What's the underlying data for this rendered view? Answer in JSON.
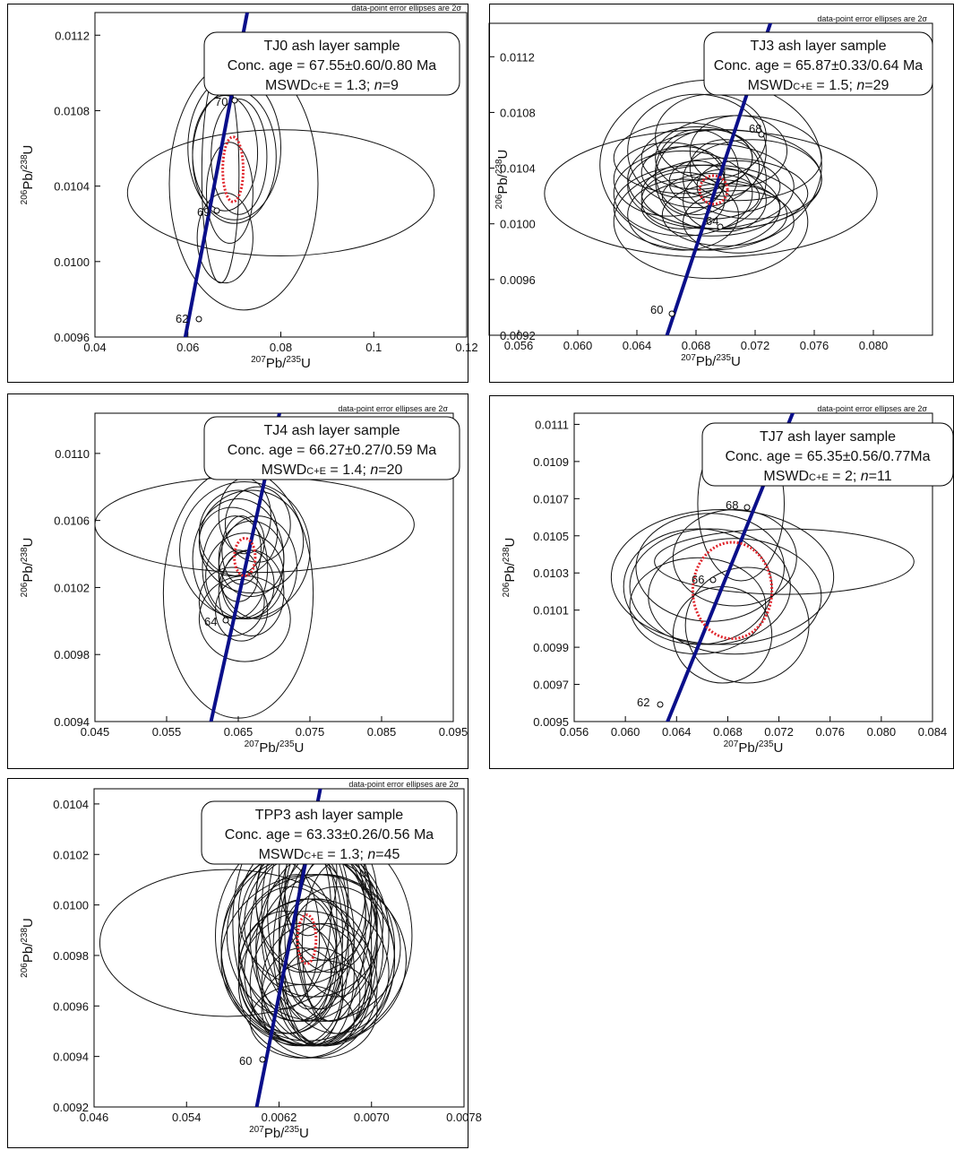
{
  "footnote": "data-point error ellipses are 2σ",
  "axes": {
    "x_label_pre": "207",
    "x_label_mid": "Pb/",
    "x_label_sup2": "235",
    "x_label_end": "U",
    "y_label_pre": "206",
    "y_label_mid": "Pb/",
    "y_label_sup2": "238",
    "y_label_end": "U"
  },
  "chart_data": [
    {
      "type": "scatter",
      "sample": "TJ0 ash layer sample",
      "conc_age": "Conc. age = 67.55±0.60/0.80 Ma",
      "mswd_label": "MSWD",
      "mswd_sub": "C+E",
      "mswd_value": "= 1.3;",
      "n_label": "n",
      "n_value": "=9",
      "xlim": [
        0.04,
        0.12
      ],
      "ylim": [
        0.0096,
        0.0114
      ],
      "x_ticks": [
        "0.04",
        "0.06",
        "0.08",
        "0.1",
        "0.12"
      ],
      "y_ticks": [
        "0.0096",
        "0.0100",
        "0.0104",
        "0.0108",
        "0.0112"
      ],
      "concordia_ages_labeled": [
        "62",
        "69",
        "70"
      ],
      "ellipses": [
        {
          "x": 0.072,
          "y": 0.01045,
          "rx": 0.016,
          "ry": 0.0007
        },
        {
          "x": 0.07,
          "y": 0.01065,
          "rx": 0.01,
          "ry": 0.0004
        },
        {
          "x": 0.068,
          "y": 0.01062,
          "rx": 0.007,
          "ry": 0.00032
        },
        {
          "x": 0.07,
          "y": 0.0106,
          "rx": 0.009,
          "ry": 0.00037
        },
        {
          "x": 0.08,
          "y": 0.0104,
          "rx": 0.033,
          "ry": 0.00035
        },
        {
          "x": 0.067,
          "y": 0.0105,
          "rx": 0.004,
          "ry": 0.0006
        },
        {
          "x": 0.069,
          "y": 0.0104,
          "rx": 0.005,
          "ry": 0.00028
        },
        {
          "x": 0.071,
          "y": 0.0106,
          "rx": 0.006,
          "ry": 0.00032
        },
        {
          "x": 0.068,
          "y": 0.01015,
          "rx": 0.006,
          "ry": 0.00025
        }
      ],
      "mean": {
        "x": 0.0697,
        "y": 0.01053,
        "rx": 0.0022,
        "ry": 0.00018
      }
    },
    {
      "type": "scatter",
      "sample": "TJ3 ash layer sample",
      "conc_age": "Conc. age = 65.87±0.33/0.64 Ma",
      "mswd_label": "MSWD",
      "mswd_sub": "C+E",
      "mswd_value": "= 1.5;",
      "n_label": "n",
      "n_value": "=29",
      "xlim": [
        0.052,
        0.084
      ],
      "ylim": [
        0.0092,
        0.0114
      ],
      "x_ticks": [
        "0.056",
        "0.060",
        "0.064",
        "0.068",
        "0.072",
        "0.076",
        "0.080"
      ],
      "y_ticks": [
        "0.0092",
        "0.0096",
        "0.0100",
        "0.0104",
        "0.0108",
        "0.0112"
      ],
      "concordia_ages_labeled": [
        "60",
        "64",
        "68"
      ],
      "ellipses": [
        {
          "x": 0.068,
          "y": 0.0102,
          "rx": 0.012,
          "ry": 0.00045
        },
        {
          "x": 0.068,
          "y": 0.0104,
          "rx": 0.008,
          "ry": 0.0006
        },
        {
          "x": 0.066,
          "y": 0.0102,
          "rx": 0.005,
          "ry": 0.0003
        },
        {
          "x": 0.068,
          "y": 0.0103,
          "rx": 0.004,
          "ry": 0.00035
        },
        {
          "x": 0.069,
          "y": 0.0102,
          "rx": 0.006,
          "ry": 0.00025
        },
        {
          "x": 0.067,
          "y": 0.0105,
          "rx": 0.005,
          "ry": 0.0004
        },
        {
          "x": 0.07,
          "y": 0.01045,
          "rx": 0.006,
          "ry": 0.0003
        },
        {
          "x": 0.066,
          "y": 0.01005,
          "rx": 0.004,
          "ry": 0.00025
        },
        {
          "x": 0.068,
          "y": 0.0101,
          "rx": 0.005,
          "ry": 0.0002
        },
        {
          "x": 0.067,
          "y": 0.01035,
          "rx": 0.003,
          "ry": 0.0003
        },
        {
          "x": 0.069,
          "y": 0.01015,
          "rx": 0.003,
          "ry": 0.00022
        },
        {
          "x": 0.071,
          "y": 0.0103,
          "rx": 0.005,
          "ry": 0.00028
        },
        {
          "x": 0.065,
          "y": 0.0103,
          "rx": 0.004,
          "ry": 0.00026
        },
        {
          "x": 0.07,
          "y": 0.01,
          "rx": 0.004,
          "ry": 0.00022
        },
        {
          "x": 0.068,
          "y": 0.0106,
          "rx": 0.004,
          "ry": 0.0003
        },
        {
          "x": 0.066,
          "y": 0.01045,
          "rx": 0.005,
          "ry": 0.00025
        },
        {
          "x": 0.069,
          "y": 0.0103,
          "rx": 0.007,
          "ry": 0.00035
        },
        {
          "x": 0.067,
          "y": 0.0101,
          "rx": 0.006,
          "ry": 0.0003
        },
        {
          "x": 0.068,
          "y": 0.01,
          "rx": 0.007,
          "ry": 0.0004
        },
        {
          "x": 0.07,
          "y": 0.01025,
          "rx": 0.003,
          "ry": 0.00018
        },
        {
          "x": 0.066,
          "y": 0.01015,
          "rx": 0.003,
          "ry": 0.0002
        },
        {
          "x": 0.067,
          "y": 0.01028,
          "rx": 0.002,
          "ry": 0.00015
        },
        {
          "x": 0.069,
          "y": 0.01038,
          "rx": 0.0025,
          "ry": 0.0002
        },
        {
          "x": 0.068,
          "y": 0.01018,
          "rx": 0.0035,
          "ry": 0.00016
        },
        {
          "x": 0.066,
          "y": 0.01035,
          "rx": 0.003,
          "ry": 0.00018
        },
        {
          "x": 0.069,
          "y": 0.01005,
          "rx": 0.0045,
          "ry": 0.00022
        },
        {
          "x": 0.07,
          "y": 0.0105,
          "rx": 0.0035,
          "ry": 0.00025
        },
        {
          "x": 0.067,
          "y": 0.01045,
          "rx": 0.004,
          "ry": 0.00022
        },
        {
          "x": 0.068,
          "y": 0.01025,
          "rx": 0.006,
          "ry": 0.0003
        }
      ],
      "mean": {
        "x": 0.0682,
        "y": 0.010225,
        "rx": 0.001,
        "ry": 0.0001
      }
    },
    {
      "type": "scatter",
      "sample": "TJ4 ash layer sample",
      "conc_age": "Conc. age = 66.27±0.27/0.59 Ma",
      "mswd_label": "MSWD",
      "mswd_sub": "C+E",
      "mswd_value": "= 1.4;",
      "n_label": "n",
      "n_value": "=20",
      "xlim": [
        0.045,
        0.1
      ],
      "ylim": [
        0.0094,
        0.0112
      ],
      "x_ticks": [
        "0.045",
        "0.055",
        "0.065",
        "0.075",
        "0.085",
        "0.095"
      ],
      "y_ticks": [
        "0.0094",
        "0.0098",
        "0.0102",
        "0.0106",
        "0.0110"
      ],
      "concordia_ages_labeled": [
        "64"
      ],
      "ellipses": [
        {
          "x": 0.0695,
          "y": 0.01055,
          "rx": 0.0245,
          "ry": 0.00028
        },
        {
          "x": 0.067,
          "y": 0.01015,
          "rx": 0.0115,
          "ry": 0.00073
        },
        {
          "x": 0.068,
          "y": 0.0104,
          "rx": 0.01,
          "ry": 0.0004
        },
        {
          "x": 0.067,
          "y": 0.01035,
          "rx": 0.007,
          "ry": 0.00035
        },
        {
          "x": 0.069,
          "y": 0.01045,
          "rx": 0.008,
          "ry": 0.0003
        },
        {
          "x": 0.0665,
          "y": 0.0103,
          "rx": 0.005,
          "ry": 0.0003
        },
        {
          "x": 0.068,
          "y": 0.01025,
          "rx": 0.006,
          "ry": 0.00025
        },
        {
          "x": 0.069,
          "y": 0.01035,
          "rx": 0.005,
          "ry": 0.00022
        },
        {
          "x": 0.067,
          "y": 0.0105,
          "rx": 0.006,
          "ry": 0.00025
        },
        {
          "x": 0.07,
          "y": 0.0103,
          "rx": 0.006,
          "ry": 0.0003
        },
        {
          "x": 0.066,
          "y": 0.0101,
          "rx": 0.005,
          "ry": 0.0002
        },
        {
          "x": 0.0685,
          "y": 0.0102,
          "rx": 0.004,
          "ry": 0.0002
        },
        {
          "x": 0.0675,
          "y": 0.0104,
          "rx": 0.003,
          "ry": 0.0002
        },
        {
          "x": 0.068,
          "y": 0.01,
          "rx": 0.007,
          "ry": 0.00025
        },
        {
          "x": 0.07,
          "y": 0.01055,
          "rx": 0.005,
          "ry": 0.00022
        },
        {
          "x": 0.066,
          "y": 0.01045,
          "rx": 0.005,
          "ry": 0.0002
        },
        {
          "x": 0.069,
          "y": 0.01015,
          "rx": 0.005,
          "ry": 0.00025
        },
        {
          "x": 0.067,
          "y": 0.01025,
          "rx": 0.003,
          "ry": 0.00015
        },
        {
          "x": 0.068,
          "y": 0.0106,
          "rx": 0.004,
          "ry": 0.00022
        },
        {
          "x": 0.0675,
          "y": 0.01005,
          "rx": 0.004,
          "ry": 0.00018
        }
      ],
      "mean": {
        "x": 0.068,
        "y": 0.01036,
        "rx": 0.0016,
        "ry": 0.00011
      }
    },
    {
      "type": "scatter",
      "sample": "TJ7 ash layer sample",
      "conc_age": "Conc. age = 65.35±0.56/0.77Ma",
      "mswd_label": "MSWD",
      "mswd_sub": "C+E",
      "mswd_value": "= 2;",
      "n_label": "n",
      "n_value": "=11",
      "xlim": [
        0.056,
        0.085
      ],
      "ylim": [
        0.0095,
        0.0111
      ],
      "x_ticks": [
        "0.056",
        "0.060",
        "0.064",
        "0.068",
        "0.072",
        "0.076",
        "0.080",
        "0.084"
      ],
      "y_ticks": [
        "0.0095",
        "0.0097",
        "0.0099",
        "0.0101",
        "0.0103",
        "0.0105",
        "0.0107",
        "0.0109",
        "0.0111"
      ],
      "concordia_ages_labeled": [
        "62",
        "66",
        "68"
      ],
      "ellipses": [
        {
          "x": 0.0695,
          "y": 0.01063,
          "rx": 0.0035,
          "ry": 0.0004
        },
        {
          "x": 0.073,
          "y": 0.01033,
          "rx": 0.0105,
          "ry": 0.00017
        },
        {
          "x": 0.068,
          "y": 0.01025,
          "rx": 0.009,
          "ry": 0.00035
        },
        {
          "x": 0.067,
          "y": 0.0102,
          "rx": 0.0065,
          "ry": 0.0003
        },
        {
          "x": 0.069,
          "y": 0.01015,
          "rx": 0.007,
          "ry": 0.0003
        },
        {
          "x": 0.066,
          "y": 0.0101,
          "rx": 0.0055,
          "ry": 0.00025
        },
        {
          "x": 0.07,
          "y": 0.01,
          "rx": 0.005,
          "ry": 0.0003
        },
        {
          "x": 0.068,
          "y": 0.00995,
          "rx": 0.004,
          "ry": 0.00025
        },
        {
          "x": 0.067,
          "y": 0.0103,
          "rx": 0.006,
          "ry": 0.00028
        },
        {
          "x": 0.069,
          "y": 0.01035,
          "rx": 0.005,
          "ry": 0.00025
        },
        {
          "x": 0.066,
          "y": 0.0102,
          "rx": 0.006,
          "ry": 0.0003
        }
      ],
      "mean": {
        "x": 0.0688,
        "y": 0.01018,
        "rx": 0.0032,
        "ry": 0.00025
      }
    },
    {
      "type": "scatter",
      "sample": "TPP3 ash layer sample",
      "conc_age": "Conc. age = 63.33±0.26/0.56 Ma",
      "mswd_label": "MSWD",
      "mswd_sub": "C+E",
      "mswd_value": "= 1.3;",
      "n_label": "n",
      "n_value": "=45",
      "xlim": [
        0.0046,
        0.0078
      ],
      "ylim": [
        0.0092,
        0.0105
      ],
      "x_ticks": [
        "0.046",
        "0.054",
        "0.0062",
        "0.0070",
        "0.0078"
      ],
      "y_ticks": [
        "0.0092",
        "0.0094",
        "0.0096",
        "0.0098",
        "0.0100",
        "0.0102",
        "0.0104"
      ],
      "concordia_ages_labeled": [
        "60"
      ],
      "ellipses": [
        {
          "x": 0.00575,
          "y": 0.00987,
          "rx": 0.0011,
          "ry": 0.0003
        },
        {
          "x": 0.0065,
          "y": 0.0099,
          "rx": 0.00085,
          "ry": 0.00045
        },
        {
          "x": 0.0064,
          "y": 0.00985,
          "rx": 0.0007,
          "ry": 0.0004
        },
        {
          "x": 0.0066,
          "y": 0.0098,
          "rx": 0.0006,
          "ry": 0.00035
        },
        {
          "x": 0.0063,
          "y": 0.00995,
          "rx": 0.0005,
          "ry": 0.00045
        },
        {
          "x": 0.00655,
          "y": 0.01,
          "rx": 0.00045,
          "ry": 0.0004
        },
        {
          "x": 0.00645,
          "y": 0.00975,
          "rx": 0.00055,
          "ry": 0.0003
        },
        {
          "x": 0.00665,
          "y": 0.0099,
          "rx": 0.0004,
          "ry": 0.00035
        },
        {
          "x": 0.00635,
          "y": 0.00985,
          "rx": 0.00035,
          "ry": 0.0003
        },
        {
          "x": 0.0065,
          "y": 0.0097,
          "rx": 0.00045,
          "ry": 0.00025
        },
        {
          "x": 0.0064,
          "y": 0.01005,
          "rx": 0.0004,
          "ry": 0.0003
        },
        {
          "x": 0.0067,
          "y": 0.0098,
          "rx": 0.0005,
          "ry": 0.0003
        },
        {
          "x": 0.00625,
          "y": 0.00975,
          "rx": 0.0004,
          "ry": 0.00025
        },
        {
          "x": 0.00655,
          "y": 0.0096,
          "rx": 0.0005,
          "ry": 0.0002
        },
        {
          "x": 0.0066,
          "y": 0.0101,
          "rx": 0.00035,
          "ry": 0.0003
        },
        {
          "x": 0.00645,
          "y": 0.00995,
          "rx": 0.00025,
          "ry": 0.00035
        },
        {
          "x": 0.0065,
          "y": 0.00985,
          "rx": 0.0003,
          "ry": 0.0004
        },
        {
          "x": 0.00635,
          "y": 0.01,
          "rx": 0.0003,
          "ry": 0.00035
        },
        {
          "x": 0.00665,
          "y": 0.00995,
          "rx": 0.0003,
          "ry": 0.0004
        },
        {
          "x": 0.0064,
          "y": 0.00965,
          "rx": 0.00035,
          "ry": 0.0002
        },
        {
          "x": 0.00655,
          "y": 0.00975,
          "rx": 0.0003,
          "ry": 0.0003
        },
        {
          "x": 0.00645,
          "y": 0.01015,
          "rx": 0.00025,
          "ry": 0.00025
        },
        {
          "x": 0.0066,
          "y": 0.0099,
          "rx": 0.00055,
          "ry": 0.00035
        },
        {
          "x": 0.0063,
          "y": 0.0098,
          "rx": 0.00045,
          "ry": 0.0003
        },
        {
          "x": 0.0065,
          "y": 0.00995,
          "rx": 0.0006,
          "ry": 0.0003
        },
        {
          "x": 0.0064,
          "y": 0.0099,
          "rx": 0.00065,
          "ry": 0.00035
        },
        {
          "x": 0.00655,
          "y": 0.00985,
          "rx": 0.0007,
          "ry": 0.0003
        },
        {
          "x": 0.0067,
          "y": 0.00995,
          "rx": 0.00035,
          "ry": 0.0003
        },
        {
          "x": 0.00635,
          "y": 0.0097,
          "rx": 0.0004,
          "ry": 0.00025
        },
        {
          "x": 0.0065,
          "y": 0.01005,
          "rx": 0.0005,
          "ry": 0.0003
        },
        {
          "x": 0.00645,
          "y": 0.0098,
          "rx": 0.00025,
          "ry": 0.00025
        },
        {
          "x": 0.0066,
          "y": 0.0097,
          "rx": 0.0004,
          "ry": 0.00025
        },
        {
          "x": 0.0064,
          "y": 0.00955,
          "rx": 0.00045,
          "ry": 0.00015
        },
        {
          "x": 0.00665,
          "y": 0.01005,
          "rx": 0.0004,
          "ry": 0.0003
        },
        {
          "x": 0.00625,
          "y": 0.0099,
          "rx": 0.0003,
          "ry": 0.0003
        },
        {
          "x": 0.00655,
          "y": 0.0099,
          "rx": 0.0002,
          "ry": 0.0003
        },
        {
          "x": 0.00645,
          "y": 0.0097,
          "rx": 0.0006,
          "ry": 0.0003
        },
        {
          "x": 0.0065,
          "y": 0.0098,
          "rx": 0.0008,
          "ry": 0.00035
        },
        {
          "x": 0.0066,
          "y": 0.00985,
          "rx": 0.00045,
          "ry": 0.0004
        },
        {
          "x": 0.0064,
          "y": 0.01,
          "rx": 0.00055,
          "ry": 0.0003
        },
        {
          "x": 0.00655,
          "y": 0.00965,
          "rx": 0.00035,
          "ry": 0.0002
        },
        {
          "x": 0.00635,
          "y": 0.0099,
          "rx": 0.0005,
          "ry": 0.00035
        },
        {
          "x": 0.0067,
          "y": 0.00985,
          "rx": 0.0003,
          "ry": 0.00035
        },
        {
          "x": 0.00645,
          "y": 0.00985,
          "rx": 0.00075,
          "ry": 0.00038
        },
        {
          "x": 0.0065,
          "y": 0.00975,
          "rx": 0.00065,
          "ry": 0.0003
        }
      ],
      "mean": {
        "x": 0.00644,
        "y": 0.009885,
        "rx": 8e-05,
        "ry": 0.0001
      }
    }
  ]
}
